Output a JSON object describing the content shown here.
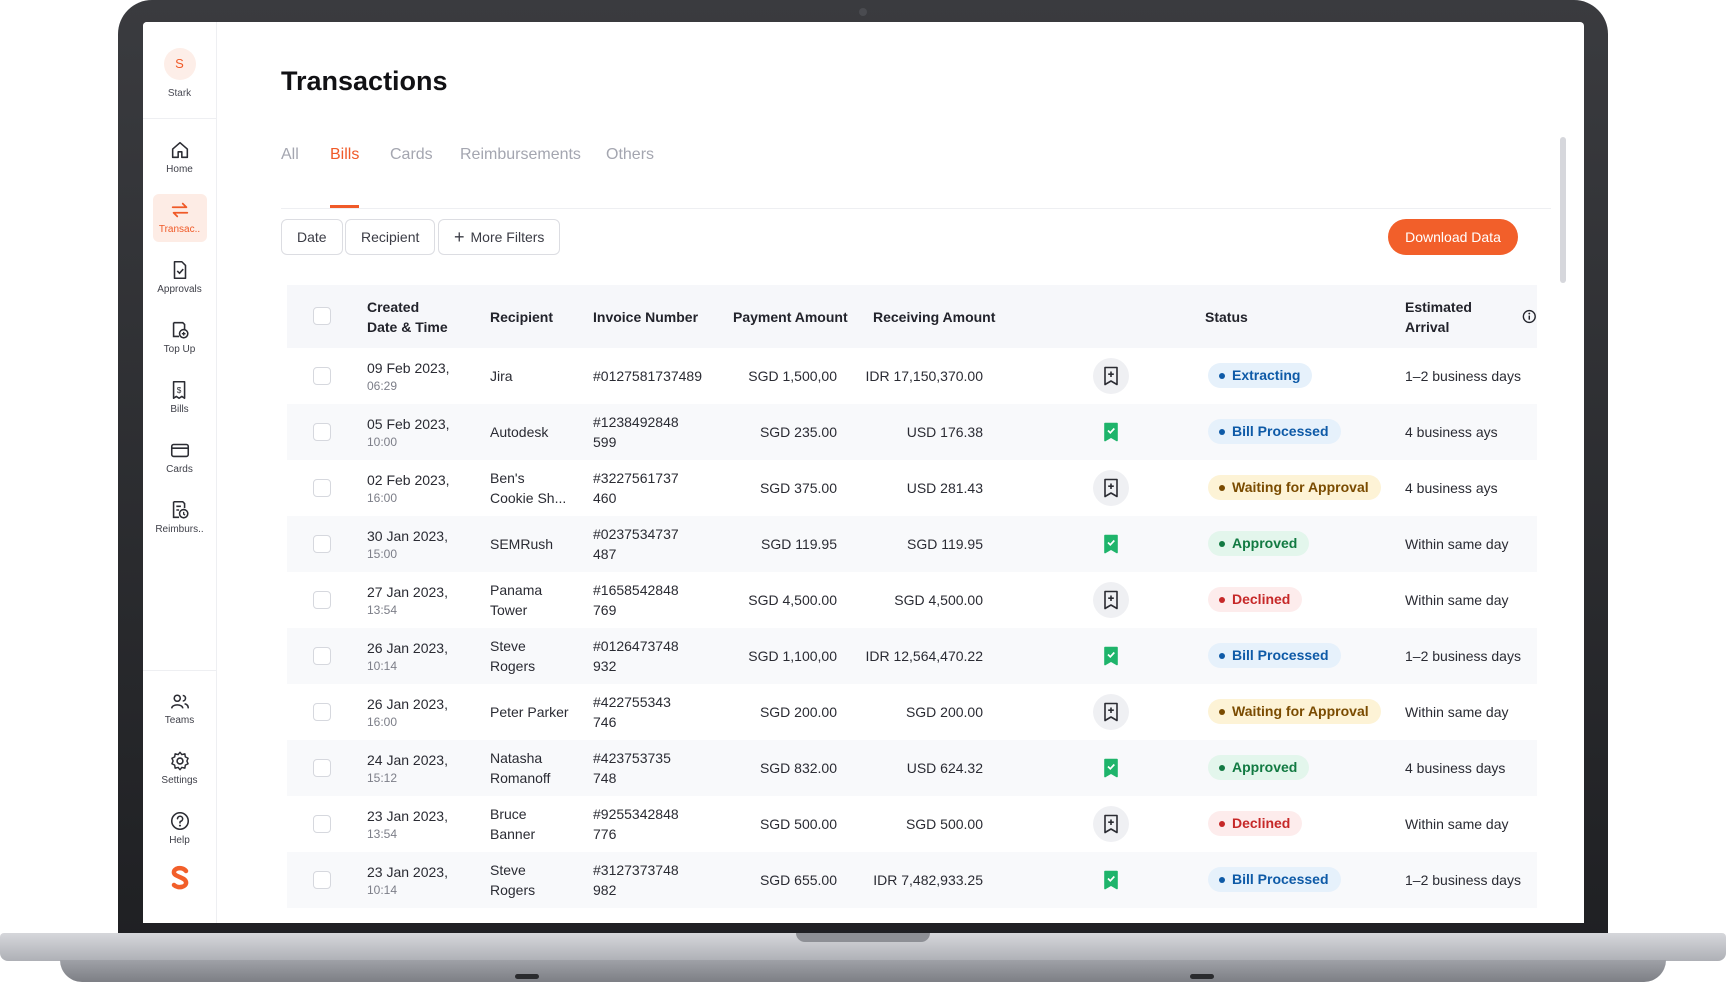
{
  "org": {
    "initial": "S",
    "name": "Stark"
  },
  "sidebar": {
    "items": [
      {
        "label": "Home",
        "icon": "home-icon"
      },
      {
        "label": "Transac..",
        "icon": "transfer-icon",
        "active": true
      },
      {
        "label": "Approvals",
        "icon": "approvals-icon"
      },
      {
        "label": "Top Up",
        "icon": "top-up-icon"
      },
      {
        "label": "Bills",
        "icon": "bills-icon"
      },
      {
        "label": "Cards",
        "icon": "card-icon"
      },
      {
        "label": "Reimburs..",
        "icon": "reimbursement-icon"
      }
    ],
    "bottom": [
      {
        "label": "Teams",
        "icon": "teams-icon"
      },
      {
        "label": "Settings",
        "icon": "gear-icon"
      },
      {
        "label": "Help",
        "icon": "help-icon"
      }
    ]
  },
  "page": {
    "title": "Transactions"
  },
  "tabs": [
    "All",
    "Bills",
    "Cards",
    "Reimbursements",
    "Others"
  ],
  "active_tab": "Bills",
  "filters": {
    "date": "Date",
    "recipient": "Recipient",
    "more": "More Filters"
  },
  "download_label": "Download Data",
  "table": {
    "columns": {
      "created_line1": "Created",
      "created_line2": "Date & Time",
      "recipient": "Recipient",
      "invoice": "Invoice Number",
      "payment": "Payment Amount",
      "receiving": "Receiving Amount",
      "status": "Status",
      "arrival": "Estimated Arrival"
    },
    "rows": [
      {
        "date": "09 Feb 2023,",
        "time": "06:29",
        "recipient": [
          "Jira"
        ],
        "invoice": [
          "#0127581737489"
        ],
        "payment": "SGD 1,500,00",
        "receiving": "IDR 17,150,370.00",
        "doc": "pending",
        "status": "Extracting",
        "status_type": "extracting",
        "arrival": "1–2  business days"
      },
      {
        "date": "05 Feb 2023,",
        "time": "10:00",
        "recipient": [
          "Autodesk"
        ],
        "invoice": [
          "#1238492848",
          "599"
        ],
        "payment": "SGD 235.00",
        "receiving": "USD 176.38",
        "doc": "done",
        "status": "Bill Processed",
        "status_type": "processed",
        "arrival": "4 business ays"
      },
      {
        "date": "02 Feb 2023,",
        "time": "16:00",
        "recipient": [
          "Ben's",
          "Cookie Sh..."
        ],
        "invoice": [
          "#3227561737",
          "460"
        ],
        "payment": "SGD 375.00",
        "receiving": "USD 281.43",
        "doc": "pending",
        "status": "Waiting for Approval",
        "status_type": "waiting",
        "arrival": "4 business ays"
      },
      {
        "date": "30 Jan 2023,",
        "time": "15:00",
        "recipient": [
          "SEMRush"
        ],
        "invoice": [
          "#0237534737",
          "487"
        ],
        "payment": "SGD 119.95",
        "receiving": "SGD 119.95",
        "doc": "done",
        "status": "Approved",
        "status_type": "approved",
        "arrival": "Within same day"
      },
      {
        "date": "27 Jan 2023,",
        "time": "13:54",
        "recipient": [
          "Panama",
          "Tower"
        ],
        "invoice": [
          "#1658542848",
          "769"
        ],
        "payment": "SGD 4,500.00",
        "receiving": "SGD 4,500.00",
        "doc": "pending",
        "status": "Declined",
        "status_type": "declined",
        "arrival": "Within same day"
      },
      {
        "date": "26 Jan 2023,",
        "time": "10:14",
        "recipient": [
          "Steve",
          "Rogers"
        ],
        "invoice": [
          "#0126473748",
          "932"
        ],
        "payment": "SGD 1,100,00",
        "receiving": "IDR 12,564,470.22",
        "doc": "done",
        "status": "Bill Processed",
        "status_type": "processed",
        "arrival": "1–2  business days"
      },
      {
        "date": "26 Jan 2023,",
        "time": "16:00",
        "recipient": [
          "Peter Parker"
        ],
        "invoice": [
          "#422755343",
          "746"
        ],
        "payment": "SGD 200.00",
        "receiving": "SGD 200.00",
        "doc": "pending",
        "status": "Waiting for Approval",
        "status_type": "waiting",
        "arrival": "Within same day"
      },
      {
        "date": "24 Jan 2023,",
        "time": "15:12",
        "recipient": [
          "Natasha",
          "Romanoff"
        ],
        "invoice": [
          "#423753735",
          "748"
        ],
        "payment": "SGD 832.00",
        "receiving": "USD 624.32",
        "doc": "done",
        "status": "Approved",
        "status_type": "approved",
        "arrival": "4 business days"
      },
      {
        "date": "23 Jan 2023,",
        "time": "13:54",
        "recipient": [
          "Bruce",
          "Banner"
        ],
        "invoice": [
          "#9255342848",
          "776"
        ],
        "payment": "SGD 500.00",
        "receiving": "SGD 500.00",
        "doc": "pending",
        "status": "Declined",
        "status_type": "declined",
        "arrival": "Within same day"
      },
      {
        "date": "23 Jan 2023,",
        "time": "10:14",
        "recipient": [
          "Steve",
          "Rogers"
        ],
        "invoice": [
          "#3127373748",
          "982"
        ],
        "payment": "SGD 655.00",
        "receiving": "IDR 7,482,933.25",
        "doc": "done",
        "status": "Bill Processed",
        "status_type": "processed",
        "arrival": "1–2  business days"
      }
    ]
  },
  "status_colors": {
    "extracting": {
      "bg": "#e6f1fb",
      "fg": "#0e5aa7"
    },
    "processed": {
      "bg": "#e6f1fb",
      "fg": "#0e5aa7"
    },
    "waiting": {
      "bg": "#fdf3d6",
      "fg": "#7a4b00"
    },
    "approved": {
      "bg": "#e3f6ec",
      "fg": "#127a42"
    },
    "declined": {
      "bg": "#fdecec",
      "fg": "#c62828"
    }
  },
  "accent": "#f05a28"
}
